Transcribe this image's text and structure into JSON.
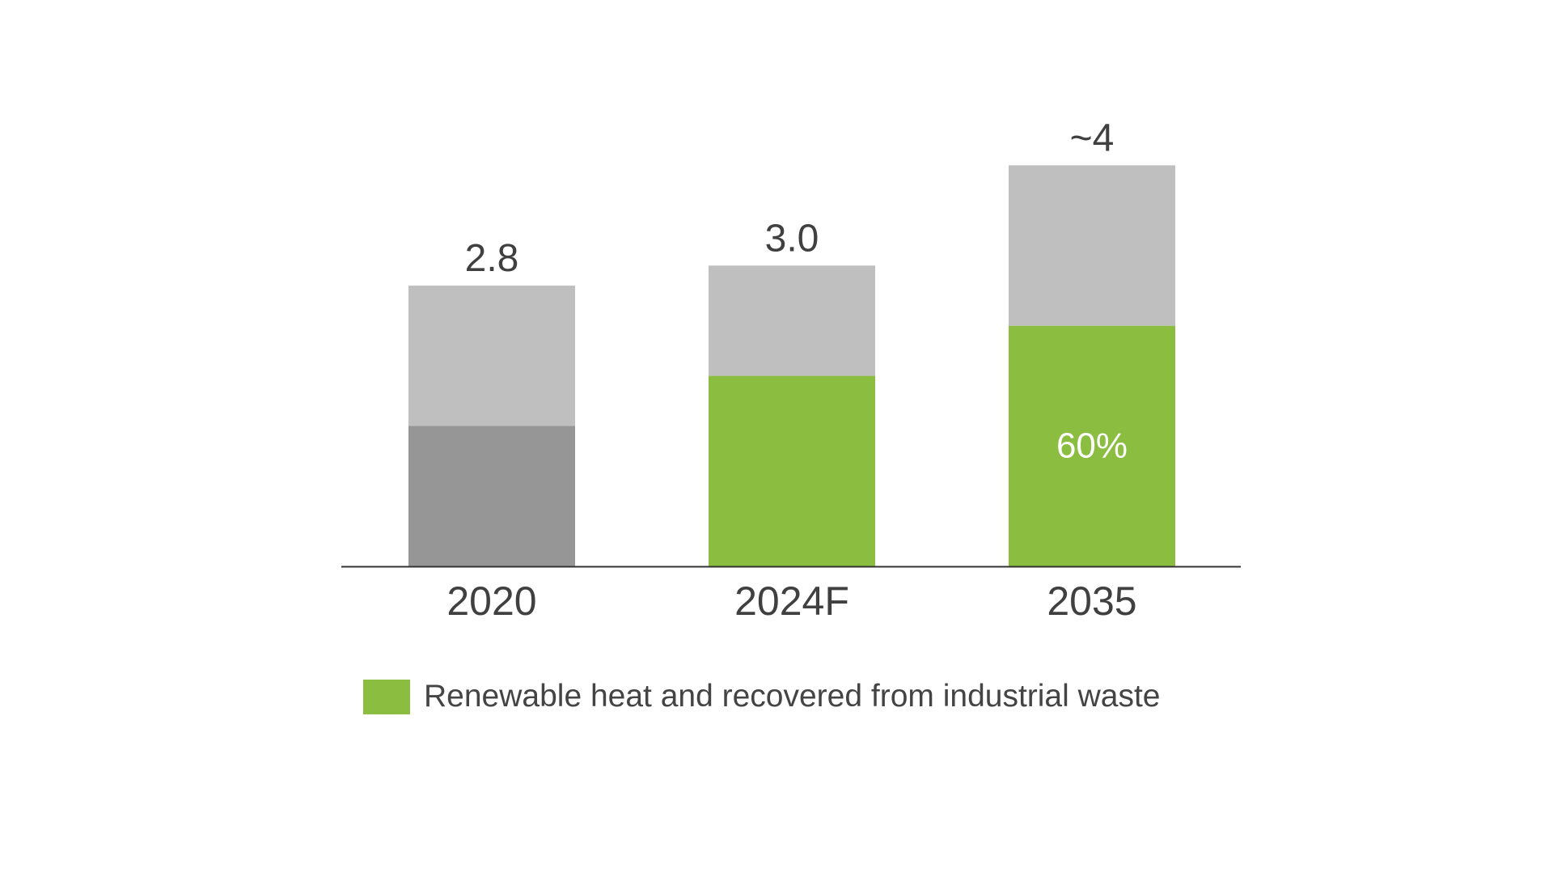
{
  "chart_data": {
    "type": "bar",
    "stacked": true,
    "categories": [
      "2020",
      "2024F",
      "2035"
    ],
    "totals": [
      2.8,
      3.0,
      4
    ],
    "total_labels": [
      "2.8",
      "3.0",
      "~4"
    ],
    "series": [
      {
        "name": "Renewable heat and recovered from industrial waste",
        "values": [
          1.4,
          1.9,
          2.4
        ],
        "colors": [
          "#969696",
          "#8abd40",
          "#8abd40"
        ]
      },
      {
        "values": [
          1.4,
          1.1,
          1.6
        ],
        "colors": [
          "#bfbfbf",
          "#bfbfbf",
          "#bfbfbf"
        ]
      }
    ],
    "segment_labels": [
      "",
      "",
      "60%"
    ],
    "ylim": [
      0,
      4.6
    ],
    "grid": false,
    "legend_position": "bottom-left",
    "xlabel": "",
    "ylabel": ""
  },
  "legend": {
    "label": "Renewable heat and recovered from industrial waste",
    "color": "#8abd40"
  }
}
